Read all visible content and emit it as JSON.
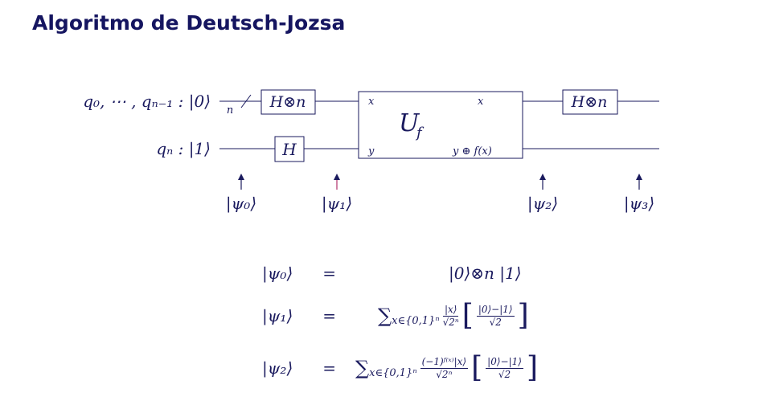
{
  "title": "Algoritmo de Deutsch-Jozsa",
  "circuit": {
    "wire_top_label": "q₀, ⋯ , qₙ₋₁ : |0⟩",
    "wire_bottom_label": "qₙ : |1⟩",
    "bus_label": "n",
    "gate_top_left": "H⊗n",
    "gate_bottom": "H",
    "oracle": "U",
    "oracle_sub": "f",
    "oracle_in_x": "x",
    "oracle_in_y": "y",
    "oracle_out_x": "x",
    "oracle_out_y": "y ⊕ f(x)",
    "gate_top_right": "H⊗n",
    "arrows": [
      "|ψ₀⟩",
      "|ψ₁⟩",
      "|ψ₂⟩",
      "|ψ₃⟩"
    ]
  },
  "equations": [
    {
      "lhs": "|ψ₀⟩",
      "rel": "=",
      "rhs": "|0⟩⊗n |1⟩"
    },
    {
      "lhs": "|ψ₁⟩",
      "rel": "=",
      "sum": "∑",
      "sum_sub": "x∈{0,1}ⁿ",
      "num": "|x⟩",
      "den": "√2ⁿ",
      "bnum": "|0⟩−|1⟩",
      "bden": "√2"
    },
    {
      "lhs": "|ψ₂⟩",
      "rel": "=",
      "sum": "∑",
      "sum_sub": "x∈{0,1}ⁿ",
      "num": "(−1)ᶠ⁽ˣ⁾|x⟩",
      "den": "√2ⁿ",
      "bnum": "|0⟩−|1⟩",
      "bden": "√2"
    }
  ],
  "colors": {
    "title": "#151560",
    "ink": "#1a1a5e",
    "arrow": "#1a1a5e",
    "arrow_accent": "#b0306a"
  }
}
